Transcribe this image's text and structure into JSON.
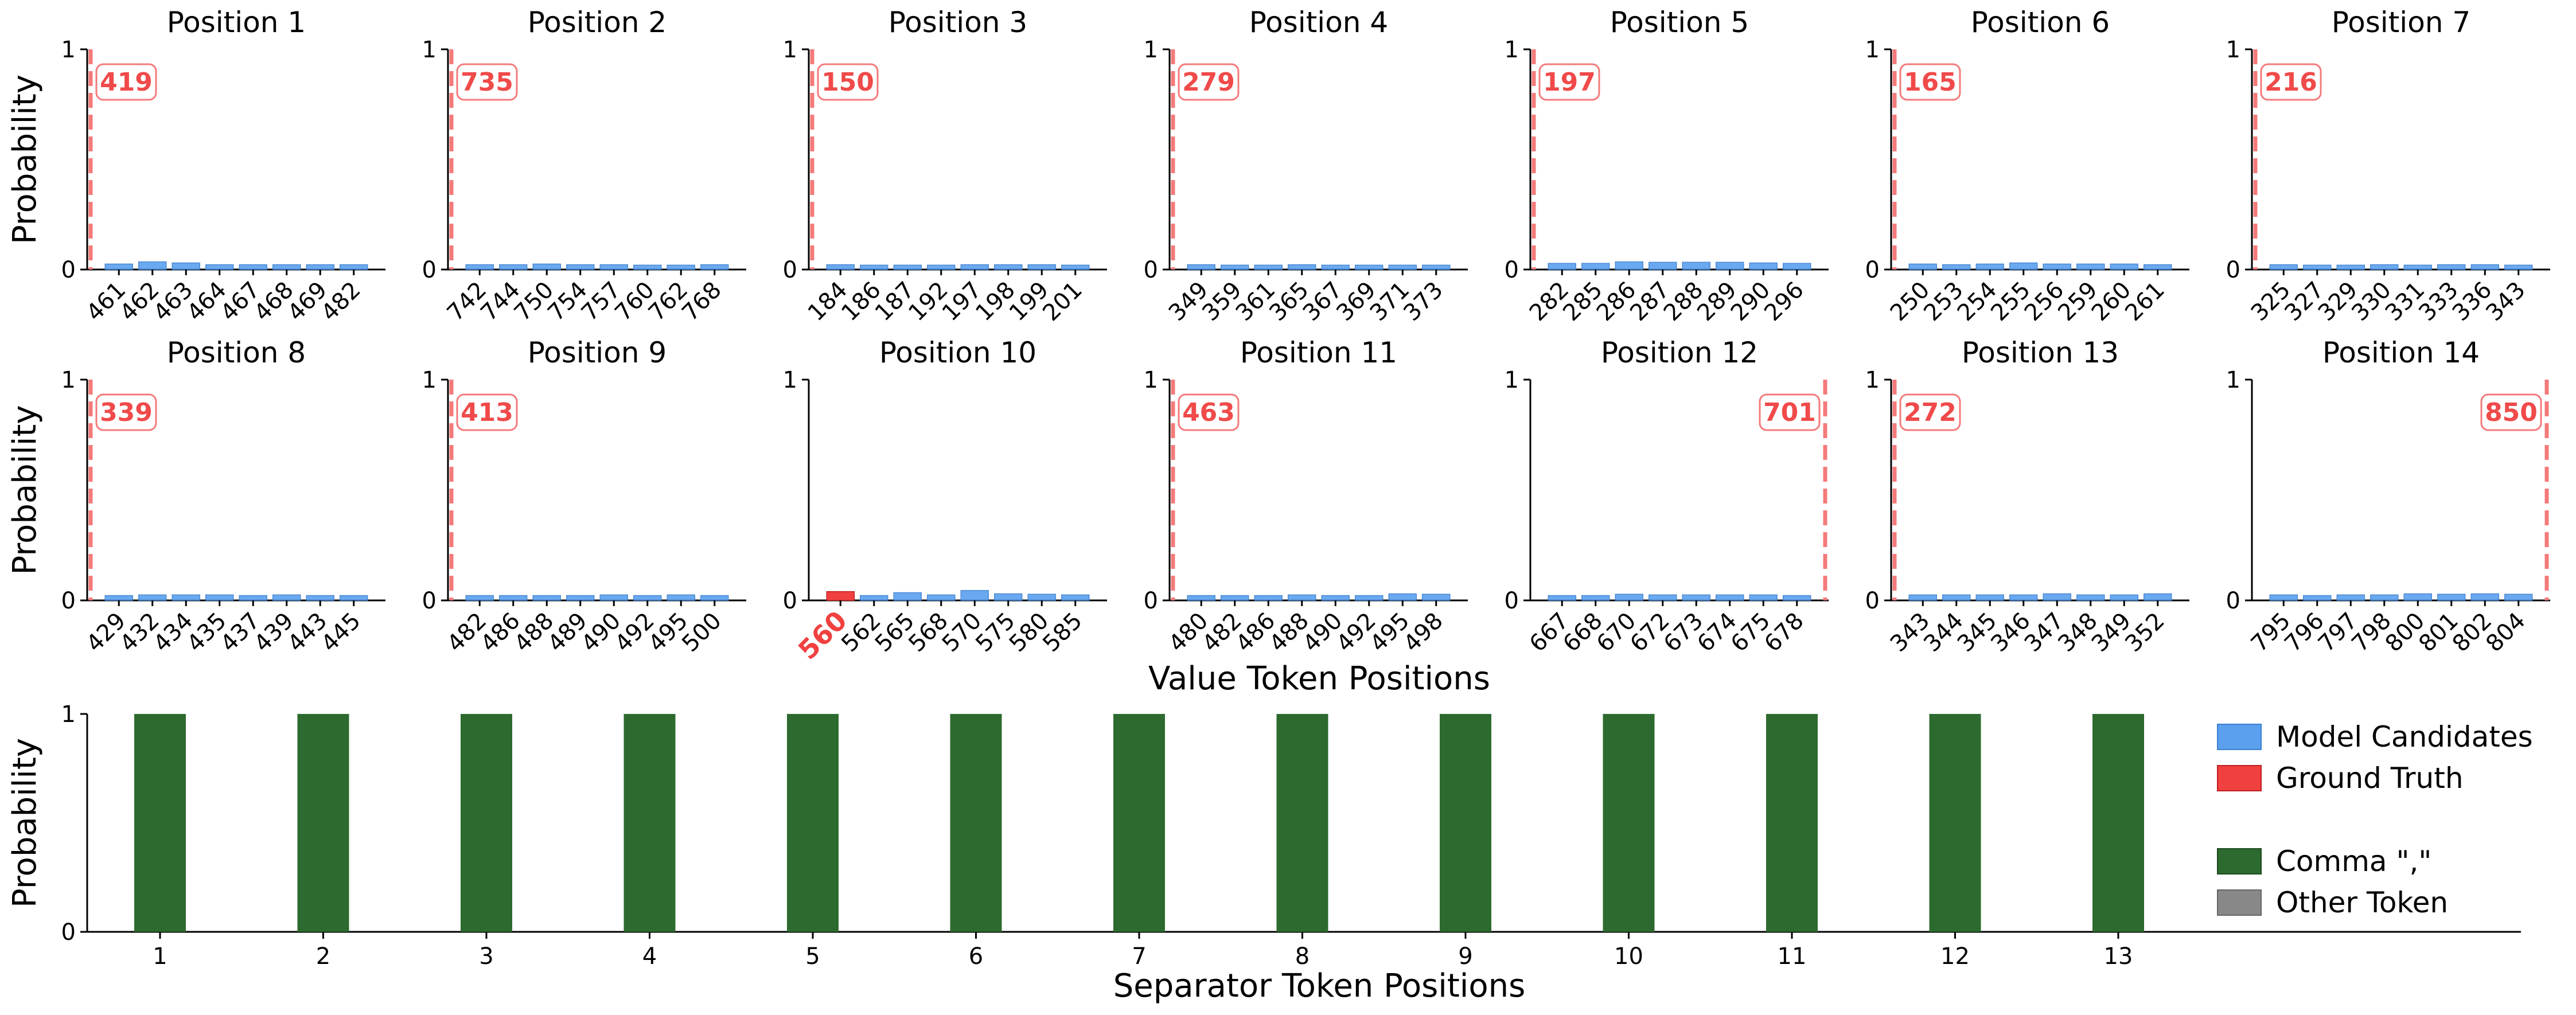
{
  "colors": {
    "candidate": "#5aa0ee",
    "candidate_edge": "#3a7fd0",
    "ground_truth": "#f04040",
    "gt_line": "#f47a7a",
    "comma": "#2d6a2f",
    "other": "#888888"
  },
  "chart_data": [
    {
      "type": "bar",
      "panel": "top",
      "y_ticks": [
        "0",
        "1"
      ],
      "ylabel": "Probability",
      "xlabel": "Value Token Positions",
      "ylim": [
        0,
        1
      ],
      "positions": [
        {
          "title": "Position 1",
          "categories": [
            "461",
            "462",
            "463",
            "464",
            "467",
            "468",
            "469",
            "482"
          ],
          "values": [
            0.025,
            0.035,
            0.03,
            0.022,
            0.022,
            0.022,
            0.022,
            0.022
          ],
          "gt_label": "419",
          "gt_index": null,
          "gt_side": "left"
        },
        {
          "title": "Position 2",
          "categories": [
            "742",
            "744",
            "750",
            "754",
            "757",
            "760",
            "762",
            "768"
          ],
          "values": [
            0.022,
            0.022,
            0.025,
            0.022,
            0.022,
            0.02,
            0.02,
            0.022
          ],
          "gt_label": "735",
          "gt_index": null,
          "gt_side": "left"
        },
        {
          "title": "Position 3",
          "categories": [
            "184",
            "186",
            "187",
            "192",
            "197",
            "198",
            "199",
            "201"
          ],
          "values": [
            0.022,
            0.02,
            0.02,
            0.02,
            0.022,
            0.022,
            0.022,
            0.02
          ],
          "gt_label": "150",
          "gt_index": null,
          "gt_side": "left"
        },
        {
          "title": "Position 4",
          "categories": [
            "349",
            "359",
            "361",
            "365",
            "367",
            "369",
            "371",
            "373"
          ],
          "values": [
            0.022,
            0.02,
            0.02,
            0.022,
            0.02,
            0.02,
            0.02,
            0.02
          ],
          "gt_label": "279",
          "gt_index": null,
          "gt_side": "left"
        },
        {
          "title": "Position 5",
          "categories": [
            "282",
            "285",
            "286",
            "287",
            "288",
            "289",
            "290",
            "296"
          ],
          "values": [
            0.028,
            0.028,
            0.035,
            0.033,
            0.033,
            0.033,
            0.03,
            0.028
          ],
          "gt_label": "197",
          "gt_index": null,
          "gt_side": "left"
        },
        {
          "title": "Position 6",
          "categories": [
            "250",
            "253",
            "254",
            "255",
            "256",
            "259",
            "260",
            "261"
          ],
          "values": [
            0.025,
            0.022,
            0.025,
            0.03,
            0.025,
            0.025,
            0.025,
            0.022
          ],
          "gt_label": "165",
          "gt_index": null,
          "gt_side": "left"
        },
        {
          "title": "Position 7",
          "categories": [
            "325",
            "327",
            "329",
            "330",
            "331",
            "333",
            "336",
            "343"
          ],
          "values": [
            0.022,
            0.02,
            0.02,
            0.022,
            0.02,
            0.022,
            0.022,
            0.02
          ],
          "gt_label": "216",
          "gt_index": null,
          "gt_side": "left"
        },
        {
          "title": "Position 8",
          "categories": [
            "429",
            "432",
            "434",
            "435",
            "437",
            "439",
            "443",
            "445"
          ],
          "values": [
            0.022,
            0.025,
            0.025,
            0.025,
            0.022,
            0.025,
            0.022,
            0.022
          ],
          "gt_label": "339",
          "gt_index": null,
          "gt_side": "left"
        },
        {
          "title": "Position 9",
          "categories": [
            "482",
            "486",
            "488",
            "489",
            "490",
            "492",
            "495",
            "500"
          ],
          "values": [
            0.022,
            0.022,
            0.022,
            0.022,
            0.025,
            0.022,
            0.025,
            0.022
          ],
          "gt_label": "413",
          "gt_index": null,
          "gt_side": "left"
        },
        {
          "title": "Position 10",
          "categories": [
            "560",
            "562",
            "565",
            "568",
            "570",
            "575",
            "580",
            "585"
          ],
          "values": [
            0.04,
            0.022,
            0.035,
            0.025,
            0.045,
            0.03,
            0.028,
            0.025
          ],
          "gt_label": "560",
          "gt_index": 0,
          "gt_side": "none"
        },
        {
          "title": "Position 11",
          "categories": [
            "480",
            "482",
            "486",
            "488",
            "490",
            "492",
            "495",
            "498"
          ],
          "values": [
            0.022,
            0.022,
            0.022,
            0.025,
            0.022,
            0.022,
            0.03,
            0.028
          ],
          "gt_label": "463",
          "gt_index": null,
          "gt_side": "left"
        },
        {
          "title": "Position 12",
          "categories": [
            "667",
            "668",
            "670",
            "672",
            "673",
            "674",
            "675",
            "678"
          ],
          "values": [
            0.022,
            0.022,
            0.028,
            0.025,
            0.025,
            0.025,
            0.025,
            0.022
          ],
          "gt_label": "701",
          "gt_index": null,
          "gt_side": "right"
        },
        {
          "title": "Position 13",
          "categories": [
            "343",
            "344",
            "345",
            "346",
            "347",
            "348",
            "349",
            "352"
          ],
          "values": [
            0.025,
            0.025,
            0.025,
            0.025,
            0.03,
            0.025,
            0.025,
            0.03
          ],
          "gt_label": "272",
          "gt_index": null,
          "gt_side": "left"
        },
        {
          "title": "Position 14",
          "categories": [
            "795",
            "796",
            "797",
            "798",
            "800",
            "801",
            "802",
            "804"
          ],
          "values": [
            0.025,
            0.022,
            0.025,
            0.025,
            0.03,
            0.028,
            0.03,
            0.028
          ],
          "gt_label": "850",
          "gt_index": null,
          "gt_side": "right"
        }
      ]
    },
    {
      "type": "bar",
      "panel": "bottom",
      "ylabel": "Probability",
      "xlabel": "Separator Token Positions",
      "y_ticks": [
        "0",
        "1"
      ],
      "ylim": [
        0,
        1
      ],
      "categories": [
        "1",
        "2",
        "3",
        "4",
        "5",
        "6",
        "7",
        "8",
        "9",
        "10",
        "11",
        "12",
        "13"
      ],
      "series": [
        {
          "name": "Comma \",\"",
          "values": [
            1,
            1,
            1,
            1,
            1,
            1,
            1,
            1,
            1,
            1,
            1,
            1,
            1
          ]
        },
        {
          "name": "Other Token",
          "values": [
            0,
            0,
            0,
            0,
            0,
            0,
            0,
            0,
            0,
            0,
            0,
            0,
            0
          ]
        }
      ],
      "legend": {
        "placement": "right",
        "entries": [
          {
            "label": "Model Candidates",
            "color_key": "candidate"
          },
          {
            "label": "Ground Truth",
            "color_key": "ground_truth"
          },
          {
            "label": "Comma \",\"",
            "color_key": "comma"
          },
          {
            "label": "Other Token",
            "color_key": "other"
          }
        ]
      }
    }
  ]
}
